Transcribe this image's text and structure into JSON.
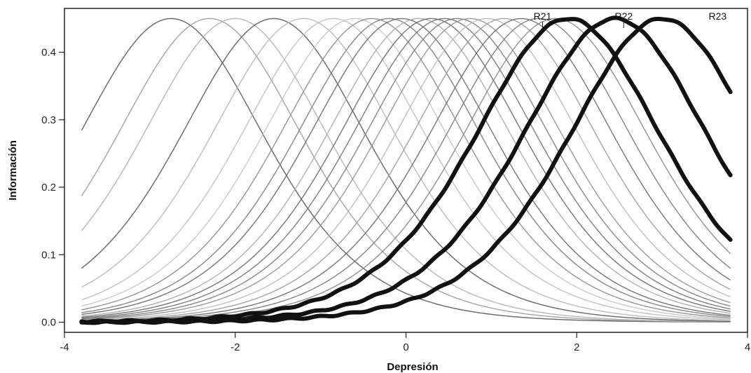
{
  "chart_data": {
    "type": "line",
    "title": "",
    "xlabel": "Depresión",
    "ylabel": "Información",
    "xlim": [
      -4,
      4
    ],
    "ylim": [
      -0.015,
      0.465
    ],
    "x_ticks": [
      -4,
      -2,
      0,
      2,
      4
    ],
    "x_tick_labels": [
      "-4",
      "-2",
      "0",
      "2",
      "4"
    ],
    "y_ticks": [
      0.0,
      0.1,
      0.2,
      0.3,
      0.4
    ],
    "y_tick_labels": [
      "0.0",
      "0.1",
      "0.2",
      "0.3",
      "0.4"
    ],
    "grid": false,
    "legend": "none",
    "x_range_plotted": [
      -3.8,
      3.8
    ],
    "max_information": 0.45,
    "curve_type": "item information functions (peak 0.45 at item location)",
    "background_items": [
      {
        "peak_location": -2.75,
        "shade": "#555555"
      },
      {
        "peak_location": -2.3,
        "shade": "#9a9a9a"
      },
      {
        "peak_location": -2.0,
        "shade": "#b0b0b0"
      },
      {
        "peak_location": -1.55,
        "shade": "#555555"
      },
      {
        "peak_location": -1.2,
        "shade": "#b5b5b5"
      },
      {
        "peak_location": -0.85,
        "shade": "#bdbdbd"
      },
      {
        "peak_location": -0.6,
        "shade": "#c4c4c4"
      },
      {
        "peak_location": -0.4,
        "shade": "#8a8a8a"
      },
      {
        "peak_location": -0.2,
        "shade": "#7a7a7a"
      },
      {
        "peak_location": -0.05,
        "shade": "#666666"
      },
      {
        "peak_location": 0.15,
        "shade": "#a8a8a8"
      },
      {
        "peak_location": 0.3,
        "shade": "#666666"
      },
      {
        "peak_location": 0.45,
        "shade": "#707070"
      },
      {
        "peak_location": 0.6,
        "shade": "#7a7a7a"
      },
      {
        "peak_location": 0.75,
        "shade": "#909090"
      },
      {
        "peak_location": 0.95,
        "shade": "#b8b8b8"
      },
      {
        "peak_location": 1.15,
        "shade": "#999999"
      },
      {
        "peak_location": 1.35,
        "shade": "#666666"
      },
      {
        "peak_location": 1.55,
        "shade": "#777777"
      },
      {
        "peak_location": 1.75,
        "shade": "#858585"
      }
    ],
    "highlighted_items": [
      {
        "name": "R21",
        "peak_location": 1.9,
        "shade": "#111111"
      },
      {
        "name": "R22",
        "peak_location": 2.45,
        "shade": "#111111"
      },
      {
        "name": "R23",
        "peak_location": 3.0,
        "shade": "#111111"
      }
    ]
  }
}
